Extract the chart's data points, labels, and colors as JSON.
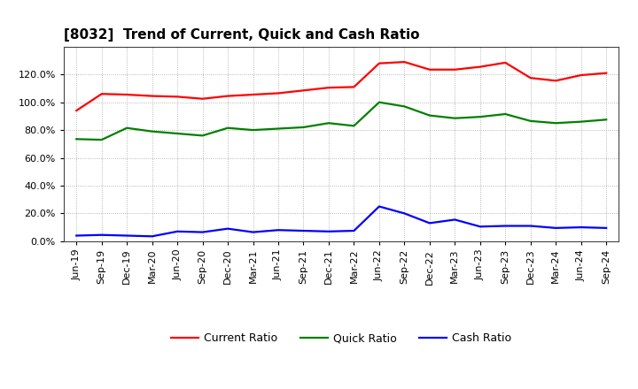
{
  "title": "[8032]  Trend of Current, Quick and Cash Ratio",
  "labels": [
    "Jun-19",
    "Sep-19",
    "Dec-19",
    "Mar-20",
    "Jun-20",
    "Sep-20",
    "Dec-20",
    "Mar-21",
    "Jun-21",
    "Sep-21",
    "Dec-21",
    "Mar-22",
    "Jun-22",
    "Sep-22",
    "Dec-22",
    "Mar-23",
    "Jun-23",
    "Sep-23",
    "Dec-23",
    "Mar-24",
    "Jun-24",
    "Sep-24"
  ],
  "current_ratio": [
    0.94,
    1.06,
    1.055,
    1.045,
    1.04,
    1.025,
    1.045,
    1.055,
    1.065,
    1.085,
    1.105,
    1.11,
    1.28,
    1.29,
    1.235,
    1.235,
    1.255,
    1.285,
    1.175,
    1.155,
    1.195,
    1.21
  ],
  "quick_ratio": [
    0.735,
    0.73,
    0.815,
    0.79,
    0.775,
    0.76,
    0.815,
    0.8,
    0.81,
    0.82,
    0.85,
    0.83,
    1.0,
    0.97,
    0.905,
    0.885,
    0.895,
    0.915,
    0.865,
    0.85,
    0.86,
    0.875
  ],
  "cash_ratio": [
    0.04,
    0.045,
    0.04,
    0.035,
    0.07,
    0.065,
    0.09,
    0.065,
    0.08,
    0.075,
    0.07,
    0.075,
    0.25,
    0.2,
    0.13,
    0.155,
    0.105,
    0.11,
    0.11,
    0.095,
    0.1,
    0.095
  ],
  "current_color": "#FF0000",
  "quick_color": "#008000",
  "cash_color": "#0000FF",
  "background_color": "#FFFFFF",
  "grid_color": "#999999",
  "ylim": [
    0.0,
    1.4
  ],
  "yticks": [
    0.0,
    0.2,
    0.4,
    0.6,
    0.8,
    1.0,
    1.2
  ],
  "legend_labels": [
    "Current Ratio",
    "Quick Ratio",
    "Cash Ratio"
  ]
}
